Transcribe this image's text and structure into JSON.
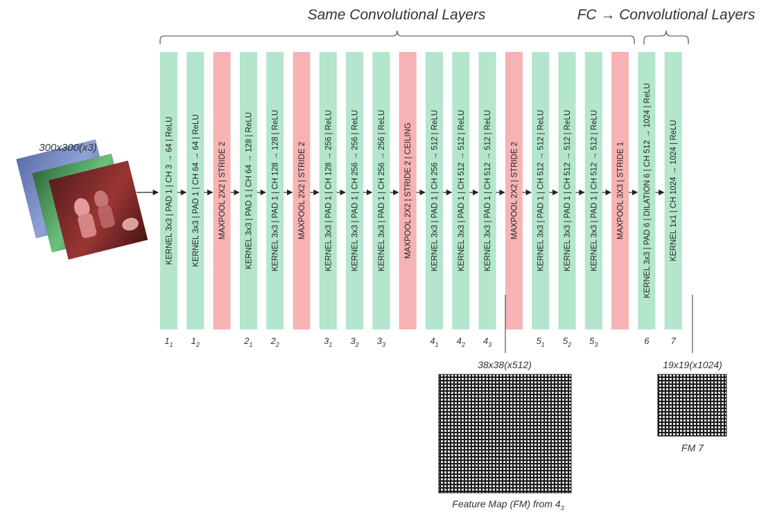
{
  "headers": {
    "same_conv": "Same Convolutional Layers",
    "fc_conv": "FC → Convolutional Layers"
  },
  "input": {
    "label": "300x300(x3)"
  },
  "layers": [
    {
      "kind": "conv",
      "text": "KERNEL 3x3 | PAD 1 | CH  3 → 64 | ReLU",
      "idx": "1",
      "sub": "1"
    },
    {
      "kind": "conv",
      "text": "KERNEL 3x3 | PAD 1 | CH  64 → 64 | ReLU",
      "idx": "1",
      "sub": "2"
    },
    {
      "kind": "pool",
      "text": "MAXPOOL 2X2 | STRIDE 2",
      "idx": "",
      "sub": ""
    },
    {
      "kind": "conv",
      "text": "KERNEL 3x3 | PAD 1 | CH  64 → 128 | ReLU",
      "idx": "2",
      "sub": "1"
    },
    {
      "kind": "conv",
      "text": "KERNEL 3x3 | PAD 1 | CH  128 → 128 | ReLU",
      "idx": "2",
      "sub": "2"
    },
    {
      "kind": "pool",
      "text": "MAXPOOL 2X2 | STRIDE 2",
      "idx": "",
      "sub": ""
    },
    {
      "kind": "conv",
      "text": "KERNEL 3x3 | PAD 1 | CH  128 → 256 | ReLU",
      "idx": "3",
      "sub": "1"
    },
    {
      "kind": "conv",
      "text": "KERNEL 3x3 | PAD 1 | CH  256 → 256 | ReLU",
      "idx": "3",
      "sub": "2"
    },
    {
      "kind": "conv",
      "text": "KERNEL 3x3 | PAD 1 | CH  256 → 256 | ReLU",
      "idx": "3",
      "sub": "3"
    },
    {
      "kind": "pool",
      "text": "MAXPOOL 2X2 | STRIDE 2 | CEILING",
      "idx": "",
      "sub": ""
    },
    {
      "kind": "conv",
      "text": "KERNEL 3x3 | PAD 1 | CH  256 → 512 | ReLU",
      "idx": "4",
      "sub": "1"
    },
    {
      "kind": "conv",
      "text": "KERNEL 3x3 | PAD 1 | CH  512 → 512 | ReLU",
      "idx": "4",
      "sub": "2"
    },
    {
      "kind": "conv",
      "text": "KERNEL 3x3 | PAD 1 | CH  512 → 512 | ReLU",
      "idx": "4",
      "sub": "3"
    },
    {
      "kind": "pool",
      "text": "MAXPOOL 2X2 | STRIDE 2",
      "idx": "",
      "sub": ""
    },
    {
      "kind": "conv",
      "text": "KERNEL 3x3 | PAD 1 | CH  512 → 512 | ReLU",
      "idx": "5",
      "sub": "1"
    },
    {
      "kind": "conv",
      "text": "KERNEL 3x3 | PAD 1 | CH  512 → 512 | ReLU",
      "idx": "5",
      "sub": "2"
    },
    {
      "kind": "conv",
      "text": "KERNEL 3x3 | PAD 1 | CH  512 → 512 | ReLU",
      "idx": "5",
      "sub": "3"
    },
    {
      "kind": "pool",
      "text": "MAXPOOL 3X3 | STRIDE 1",
      "idx": "",
      "sub": ""
    },
    {
      "kind": "conv",
      "text": "KERNEL 3x3 | PAD 6 | DILATION 6 | CH  512 → 1024 | ReLU",
      "idx": "6",
      "sub": ""
    },
    {
      "kind": "conv",
      "text": "KERNEL 1x1 | CH  1024 → 1024 | ReLU",
      "idx": "7",
      "sub": ""
    }
  ],
  "feature_maps": {
    "fm4": {
      "size_label": "38x38(x512)",
      "caption": "Feature Map (FM) from 4",
      "caption_sub": "3"
    },
    "fm7": {
      "size_label": "19x19(x1024)",
      "caption": "FM 7"
    }
  },
  "colors": {
    "conv": "#b3e6cc",
    "pool": "#f7b3b3",
    "grid_dark": "#1a1a1a",
    "grid_light": "#e0e0e0",
    "line": "#222222"
  }
}
